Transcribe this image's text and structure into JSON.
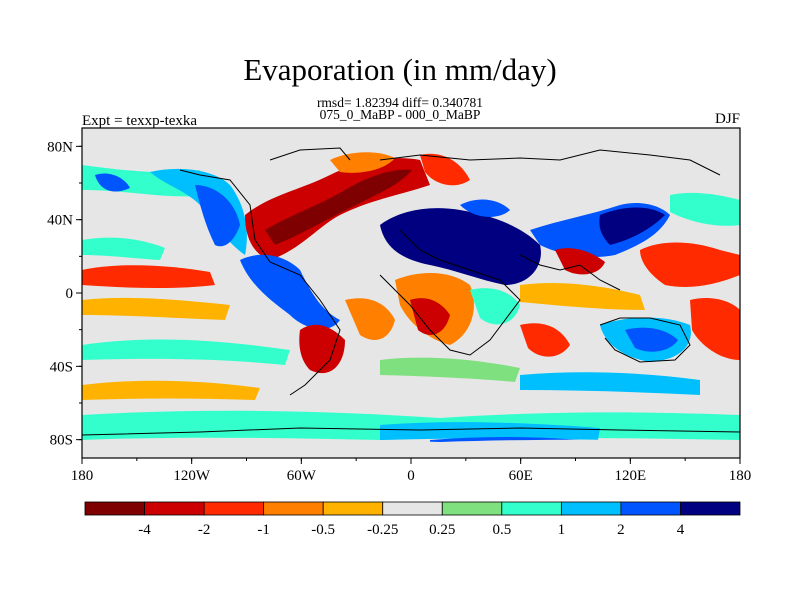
{
  "title": "Evaporation (in mm/day)",
  "subtitle_stats": "rmsd= 1.82394 diff= 0.340781",
  "subtitle_periods": "075_0_MaBP - 000_0_MaBP",
  "left_label": "Expt = texxp-texka",
  "right_label": "DJF",
  "axes": {
    "lat_ticks": [
      "80N",
      "40N",
      "0",
      "40S",
      "80S"
    ],
    "lon_ticks": [
      "180",
      "120W",
      "60W",
      "0",
      "60E",
      "120E",
      "180"
    ],
    "lat_range": [
      -90,
      90
    ],
    "lon_range": [
      -180,
      180
    ]
  },
  "colorbar": {
    "colors": [
      "#7f0000",
      "#cc0000",
      "#ff2a00",
      "#ff7f00",
      "#ffb300",
      "#e6e6e6",
      "#7fe07f",
      "#33ffcc",
      "#00bfff",
      "#0055ff",
      "#000080"
    ],
    "labels": [
      "-4",
      "-2",
      "-1",
      "-0.5",
      "-0.25",
      "0.25",
      "0.5",
      "1",
      "2",
      "4"
    ]
  },
  "land_color": "#e6e6e6"
}
